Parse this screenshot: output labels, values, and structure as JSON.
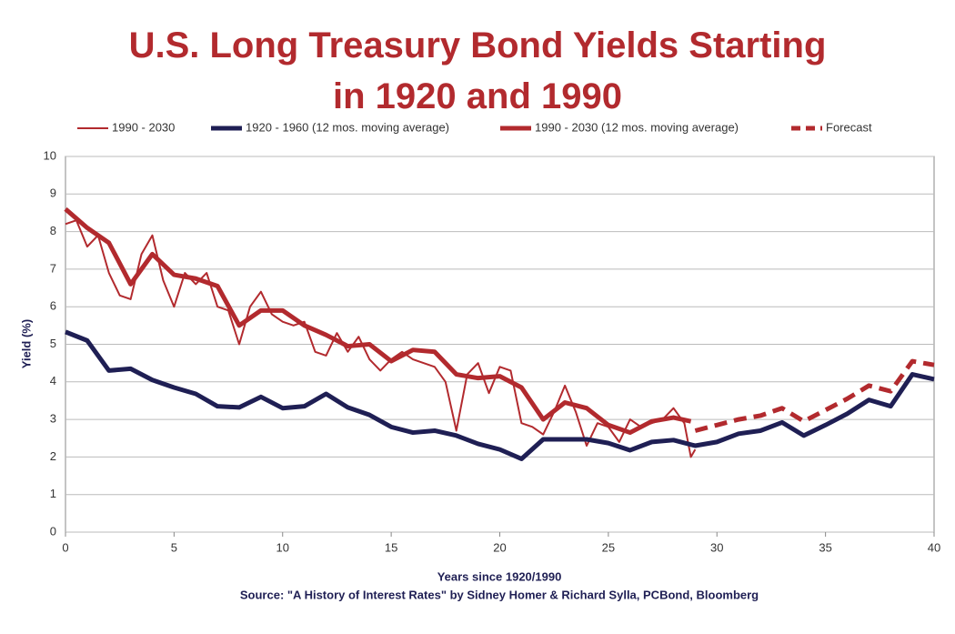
{
  "chart_data": {
    "type": "line",
    "title": "U.S. Long Treasury Bond Yields Starting in 1920 and 1990",
    "x_label": "Years since 1920/1990",
    "y_label": "Yield (%)",
    "source": "Source: \"A History of Interest Rates\" by Sidney Homer & Richard Sylla, PCBond, Bloomberg",
    "xlim": [
      0,
      40
    ],
    "xticks": [
      0,
      5,
      10,
      15,
      20,
      25,
      30,
      35,
      40
    ],
    "ylim": [
      0,
      10
    ],
    "yticks": [
      0,
      1,
      2,
      3,
      4,
      5,
      6,
      7,
      8,
      9,
      10
    ],
    "grid": true,
    "legend": "top",
    "series": [
      {
        "name": "1990 - 2030",
        "color": "#b22a2e",
        "width": 2,
        "dashed": false,
        "x": [
          0,
          0.5,
          1,
          1.5,
          2,
          2.5,
          3,
          3.5,
          4,
          4.5,
          5,
          5.5,
          6,
          6.5,
          7,
          7.5,
          8,
          8.5,
          9,
          9.5,
          10,
          10.5,
          11,
          11.5,
          12,
          12.5,
          13,
          13.5,
          14,
          14.5,
          15,
          15.5,
          16,
          16.5,
          17,
          17.5,
          18,
          18.5,
          19,
          19.5,
          20,
          20.5,
          21,
          21.5,
          22,
          22.5,
          23,
          23.5,
          24,
          24.5,
          25,
          25.5,
          26,
          26.5,
          27,
          27.5,
          28,
          28.5,
          28.8,
          29
        ],
        "values": [
          8.2,
          8.3,
          7.6,
          7.9,
          6.9,
          6.3,
          6.2,
          7.4,
          7.9,
          6.7,
          6.0,
          6.9,
          6.6,
          6.9,
          6.0,
          5.9,
          5.0,
          6.0,
          6.4,
          5.8,
          5.6,
          5.5,
          5.6,
          4.8,
          4.7,
          5.3,
          4.8,
          5.2,
          4.6,
          4.3,
          4.6,
          4.8,
          4.6,
          4.5,
          4.4,
          4.0,
          2.7,
          4.2,
          4.5,
          3.7,
          4.4,
          4.3,
          2.9,
          2.8,
          2.6,
          3.2,
          3.9,
          3.2,
          2.3,
          2.9,
          2.8,
          2.4,
          3.0,
          2.8,
          2.9,
          3.0,
          3.3,
          2.9,
          2.0,
          2.2
        ]
      },
      {
        "name": "1920 - 1960 (12 mos. moving average)",
        "color": "#1f1f54",
        "width": 5,
        "dashed": false,
        "x": [
          0,
          1,
          2,
          3,
          4,
          5,
          6,
          7,
          8,
          9,
          10,
          11,
          12,
          13,
          14,
          15,
          16,
          17,
          18,
          19,
          20,
          21,
          22,
          23,
          24,
          25,
          26,
          27,
          28,
          29,
          30,
          31,
          32,
          33,
          34,
          35,
          36,
          37,
          38,
          39,
          40
        ],
        "values": [
          5.33,
          5.1,
          4.3,
          4.35,
          4.05,
          3.85,
          3.68,
          3.35,
          3.32,
          3.6,
          3.3,
          3.35,
          3.68,
          3.32,
          3.12,
          2.8,
          2.65,
          2.7,
          2.57,
          2.35,
          2.2,
          1.95,
          2.47,
          2.47,
          2.47,
          2.37,
          2.18,
          2.4,
          2.45,
          2.3,
          2.4,
          2.62,
          2.7,
          2.92,
          2.57,
          2.85,
          3.15,
          3.52,
          3.35,
          4.2,
          4.07
        ]
      },
      {
        "name": "1990 - 2030 (12 mos. moving average)",
        "color": "#b22a2e",
        "width": 5,
        "dashed": false,
        "x": [
          0,
          1,
          2,
          3,
          4,
          5,
          6,
          7,
          8,
          9,
          10,
          11,
          12,
          13,
          14,
          15,
          16,
          17,
          18,
          19,
          20,
          21,
          22,
          23,
          24,
          25,
          26,
          27,
          28,
          28.8
        ],
        "values": [
          8.6,
          8.1,
          7.7,
          6.6,
          7.4,
          6.85,
          6.75,
          6.55,
          5.5,
          5.9,
          5.9,
          5.5,
          5.25,
          4.95,
          5.0,
          4.55,
          4.85,
          4.8,
          4.2,
          4.1,
          4.15,
          3.85,
          3.0,
          3.45,
          3.3,
          2.85,
          2.65,
          2.95,
          3.05,
          2.95
        ]
      },
      {
        "name": "Forecast",
        "color": "#b22a2e",
        "width": 5,
        "dashed": true,
        "x": [
          29,
          30,
          31,
          32,
          33,
          34,
          35,
          36,
          37,
          38,
          39,
          40
        ],
        "values": [
          2.7,
          2.85,
          3.0,
          3.1,
          3.3,
          2.95,
          3.25,
          3.55,
          3.9,
          3.75,
          4.55,
          4.45
        ]
      }
    ]
  }
}
